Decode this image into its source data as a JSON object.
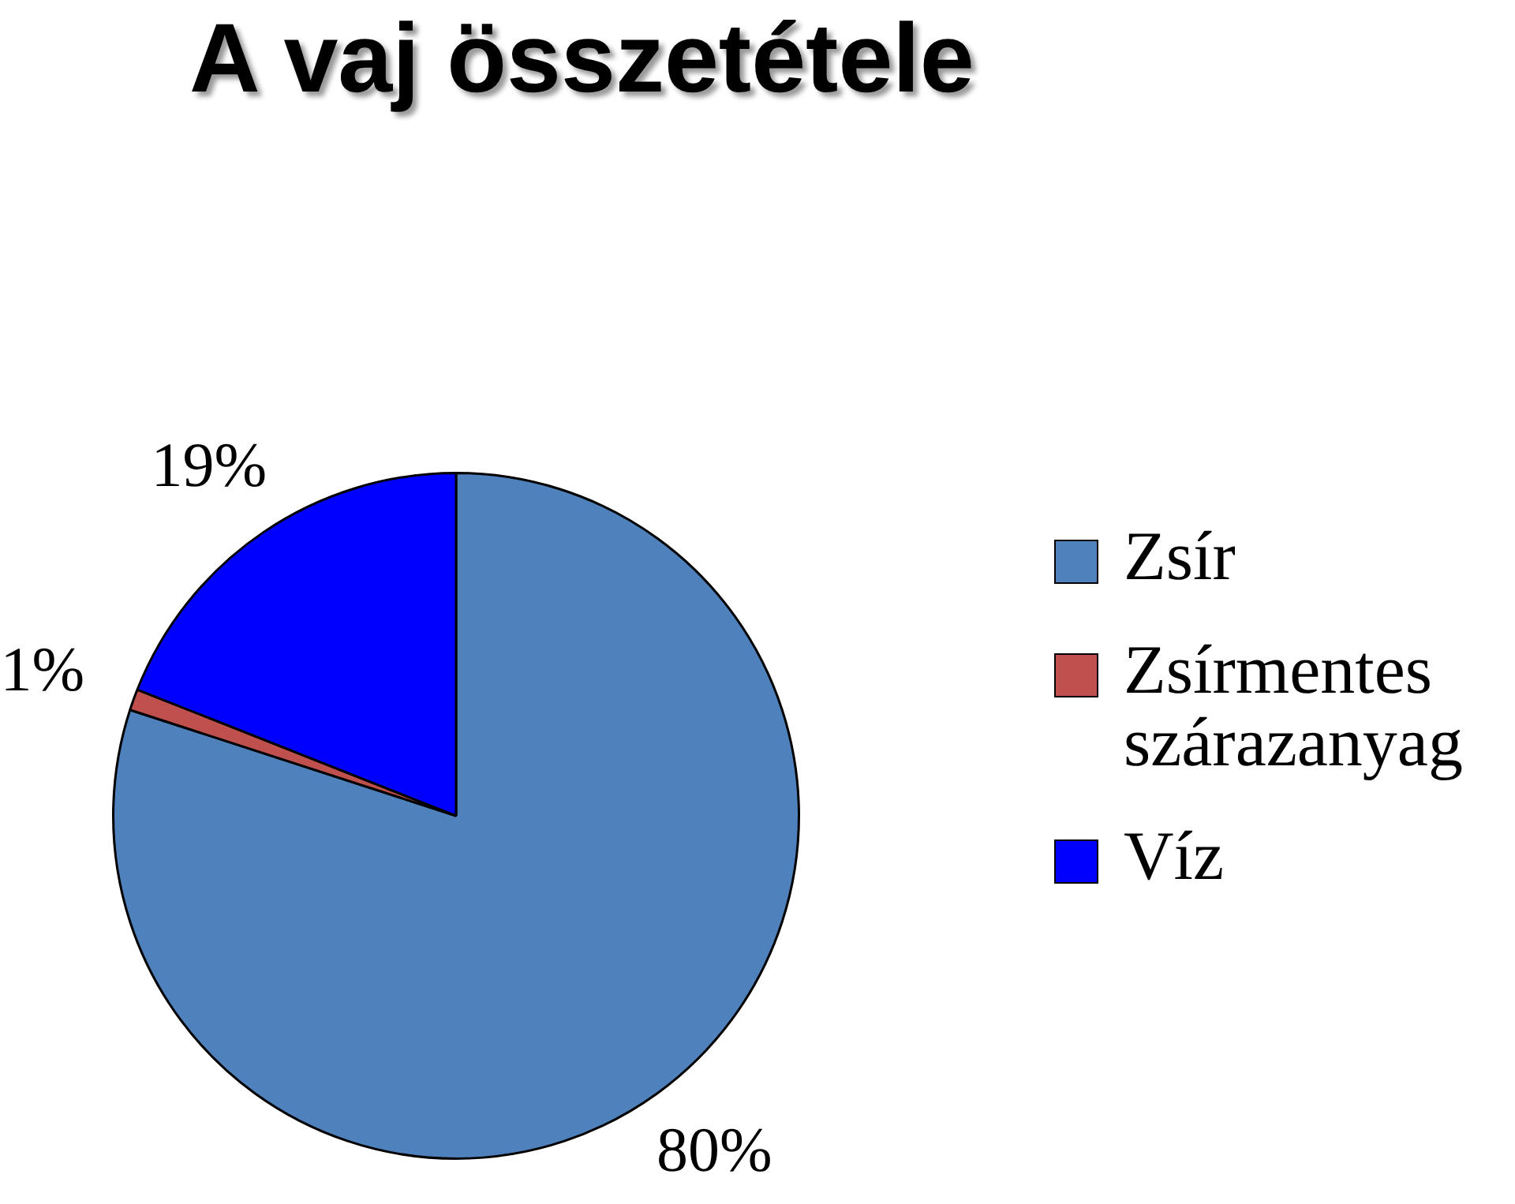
{
  "chart_data": {
    "type": "pie",
    "title": "A vaj összetétele",
    "categories": [
      "Zsír",
      "Zsírmentes szárazanyag",
      "Víz"
    ],
    "values": [
      80,
      1,
      19
    ],
    "colors": [
      "#4f81bd",
      "#c0504d",
      "#0000ff"
    ],
    "value_labels": [
      "80%",
      "1%",
      "19%"
    ],
    "legend": "right"
  }
}
